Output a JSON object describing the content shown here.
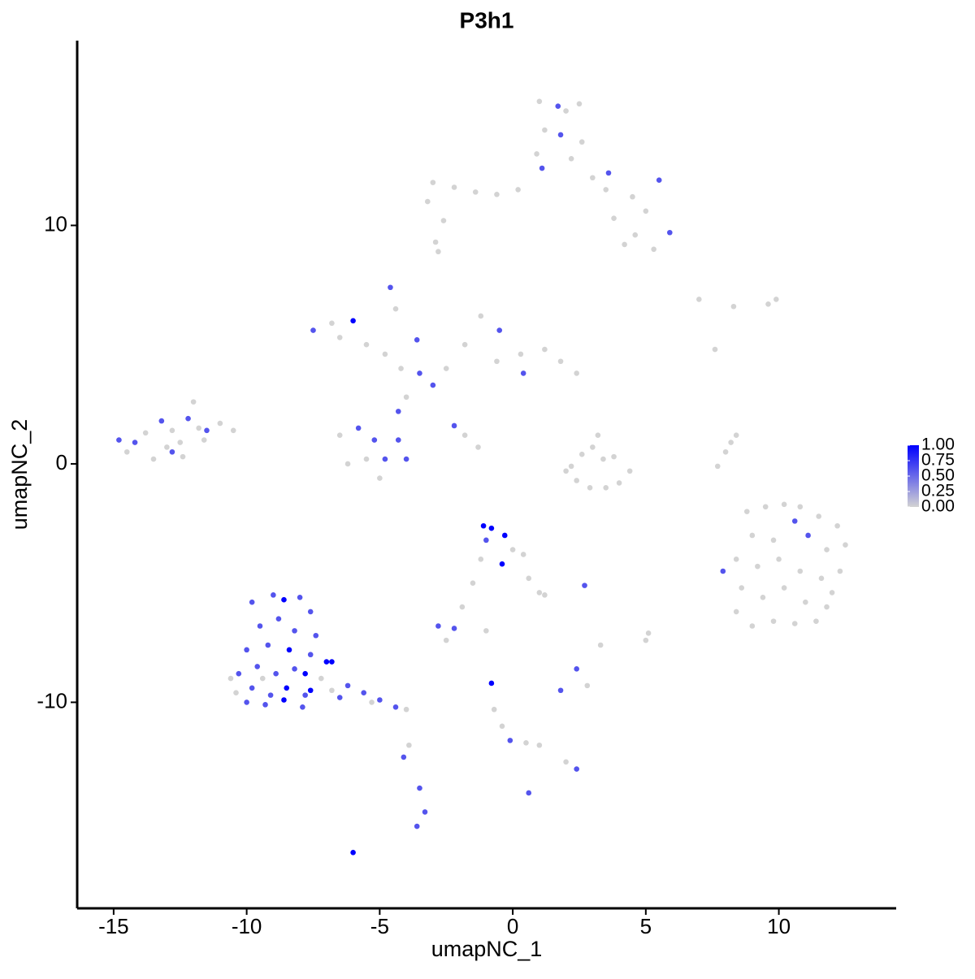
{
  "chart_data": {
    "type": "scatter",
    "title": "P3h1",
    "x_label": "umapNC_1",
    "y_label": "umapNC_2",
    "xlim": [
      -16.37,
      14.41
    ],
    "ylim": [
      -18.64,
      17.75
    ],
    "xticks": [
      -15,
      -10,
      -5,
      0,
      5,
      10
    ],
    "yticks": [
      -10,
      0,
      10
    ],
    "x": [
      1.0,
      1.7,
      2.0,
      2.5,
      1.2,
      1.8,
      2.6,
      0.9,
      1.1,
      2.2,
      3.0,
      3.5,
      3.6,
      4.5,
      5.0,
      5.5,
      3.8,
      4.6,
      5.3,
      4.2,
      -3.0,
      -2.2,
      -1.4,
      -0.6,
      0.2,
      -3.2,
      -2.6,
      -2.8,
      -2.9,
      5.9,
      -7.5,
      -6.8,
      -6.0,
      -6.5,
      -5.5,
      -4.8,
      -4.2,
      -3.5,
      -3.0,
      -3.6,
      -4.6,
      -4.4,
      -4.0,
      -4.3,
      -2.5,
      -1.8,
      -1.2,
      -0.5,
      0.3,
      0.4,
      1.2,
      1.8,
      2.4,
      -0.6,
      -6.5,
      -5.8,
      -5.2,
      -4.8,
      -5.5,
      -6.2,
      -5.0,
      -4.0,
      -4.3,
      -2.2,
      -1.8,
      -1.3,
      -14.8,
      -14.2,
      -14.5,
      -13.8,
      -13.2,
      -12.8,
      -12.5,
      -12.2,
      -11.8,
      -11.5,
      -11.0,
      -10.5,
      -12.0,
      -13.5,
      -12.8,
      -13.0,
      -11.6,
      -12.4,
      2.0,
      2.4,
      2.9,
      3.5,
      4.0,
      4.4,
      3.0,
      3.2,
      3.4,
      2.6,
      3.8,
      2.2,
      7.7,
      8.0,
      8.2,
      8.4,
      7.0,
      8.3,
      9.6,
      9.9,
      7.6,
      8.8,
      9.5,
      10.2,
      10.8,
      11.5,
      12.2,
      12.5,
      9.0,
      9.8,
      10.6,
      11.1,
      11.8,
      8.4,
      9.2,
      10.0,
      10.8,
      11.6,
      12.3,
      7.9,
      8.6,
      9.4,
      10.2,
      11.0,
      11.8,
      8.4,
      9.0,
      9.8,
      10.6,
      11.4,
      12.0,
      -9.8,
      -9.0,
      -8.6,
      -8.0,
      -7.6,
      -9.5,
      -8.8,
      -8.2,
      -7.4,
      -10.0,
      -9.2,
      -8.4,
      -7.6,
      -7.0,
      -10.3,
      -9.6,
      -8.9,
      -8.2,
      -7.8,
      -7.2,
      -10.4,
      -9.8,
      -9.1,
      -8.5,
      -7.8,
      -10.0,
      -9.3,
      -8.6,
      -7.9,
      -7.6,
      -6.8,
      -6.2,
      -5.6,
      -5.0,
      -4.4,
      -4.0,
      -5.3,
      -6.5,
      -10.6,
      -9.4,
      -1.1,
      -0.8,
      -0.3,
      -1.0,
      -0.4,
      0.0,
      0.4,
      0.6,
      1.0,
      1.2,
      -1.2,
      -1.5,
      -1.9,
      2.7,
      -2.8,
      -2.2,
      -2.5,
      -1.0,
      -0.8,
      -0.7,
      -0.4,
      -0.1,
      0.5,
      1.0,
      2.4,
      2.0,
      0.6,
      1.8,
      2.4,
      2.8,
      3.3,
      5.0,
      5.1,
      -3.5,
      -3.3,
      -3.6,
      -3.9,
      -4.1,
      -6.0,
      -6.8
    ],
    "y": [
      15.2,
      15.0,
      14.8,
      15.1,
      14.0,
      13.8,
      13.5,
      13.0,
      12.4,
      12.8,
      12.0,
      11.5,
      12.2,
      11.2,
      10.6,
      11.9,
      10.3,
      9.6,
      9.0,
      9.2,
      11.8,
      11.6,
      11.4,
      11.3,
      11.5,
      11.0,
      10.2,
      8.9,
      9.3,
      9.7,
      5.6,
      5.9,
      6.0,
      5.3,
      5.0,
      4.6,
      4.0,
      3.8,
      3.3,
      5.2,
      7.4,
      6.5,
      2.8,
      2.2,
      4.0,
      5.0,
      6.2,
      5.6,
      4.6,
      3.8,
      4.8,
      4.3,
      3.8,
      4.3,
      1.2,
      1.5,
      1.0,
      0.2,
      0.2,
      0.0,
      -0.6,
      0.2,
      1.0,
      1.6,
      1.2,
      0.7,
      1.0,
      0.9,
      0.5,
      1.3,
      1.8,
      1.4,
      0.9,
      1.9,
      1.5,
      1.4,
      1.7,
      1.4,
      2.6,
      0.2,
      0.5,
      0.7,
      1.0,
      0.3,
      -0.3,
      -0.7,
      -1.0,
      -1.0,
      -0.8,
      -0.3,
      0.7,
      1.2,
      0.2,
      0.4,
      0.3,
      -0.1,
      -0.1,
      0.5,
      0.9,
      1.2,
      6.9,
      6.6,
      6.7,
      6.9,
      4.8,
      -2.0,
      -1.8,
      -1.7,
      -1.8,
      -2.2,
      -2.6,
      -3.4,
      -3.0,
      -3.2,
      -2.4,
      -3.0,
      -3.6,
      -4.0,
      -4.3,
      -4.0,
      -4.5,
      -4.8,
      -4.5,
      -4.5,
      -5.2,
      -5.6,
      -5.2,
      -5.8,
      -6.0,
      -6.2,
      -6.8,
      -6.6,
      -6.7,
      -6.6,
      -5.4,
      -5.8,
      -5.5,
      -5.7,
      -5.6,
      -6.2,
      -6.8,
      -6.5,
      -7.0,
      -7.2,
      -7.8,
      -7.6,
      -7.8,
      -8.0,
      -8.3,
      -8.8,
      -8.5,
      -8.8,
      -8.6,
      -8.8,
      -9.0,
      -9.6,
      -9.4,
      -9.7,
      -9.4,
      -9.7,
      -10.0,
      -10.1,
      -9.9,
      -10.2,
      -9.5,
      -9.5,
      -9.3,
      -9.6,
      -9.9,
      -10.2,
      -10.3,
      -10.0,
      -9.8,
      -9.0,
      -9.0,
      -2.6,
      -2.7,
      -3.0,
      -3.2,
      -4.2,
      -3.6,
      -3.8,
      -4.8,
      -5.4,
      -5.5,
      -4.0,
      -5.0,
      -6.0,
      -5.1,
      -6.8,
      -6.9,
      -7.4,
      -7.0,
      -9.2,
      -10.3,
      -11.0,
      -11.6,
      -11.7,
      -11.8,
      -12.8,
      -12.5,
      -13.8,
      -9.5,
      -8.6,
      -9.3,
      -7.6,
      -7.4,
      -7.1,
      -13.6,
      -14.6,
      -15.2,
      -11.8,
      -12.3,
      -16.3,
      -8.3
    ],
    "values": [
      0,
      0.6,
      0,
      0,
      0,
      0.6,
      0,
      0,
      0.6,
      0,
      0,
      0,
      0.6,
      0,
      0,
      0.6,
      0,
      0,
      0,
      0,
      0,
      0,
      0,
      0,
      0,
      0,
      0,
      0,
      0,
      0.6,
      0.6,
      0,
      1.0,
      0,
      0,
      0,
      0,
      0.6,
      0.6,
      0.6,
      0.6,
      0,
      0,
      0.6,
      0,
      0,
      0,
      0.6,
      0,
      0.6,
      0,
      0,
      0,
      0,
      0,
      0.6,
      0.6,
      0.6,
      0,
      0,
      0,
      0.6,
      0.6,
      0.6,
      0,
      0,
      0.6,
      0.6,
      0,
      0,
      0.6,
      0,
      0,
      0.6,
      0,
      0.6,
      0,
      0,
      0,
      0,
      0.6,
      0,
      0,
      0,
      0,
      0,
      0,
      0,
      0,
      0,
      0,
      0,
      0,
      0,
      0,
      0,
      0,
      0,
      0,
      0,
      0,
      0,
      0,
      0,
      0,
      0,
      0,
      0,
      0,
      0,
      0,
      0,
      0,
      0,
      0.6,
      0.6,
      0,
      0,
      0,
      0,
      0,
      0,
      0,
      0.6,
      0,
      0,
      0,
      0,
      0,
      0,
      0,
      0,
      0,
      0,
      0,
      0.6,
      0.6,
      1.0,
      0.6,
      0.6,
      0.6,
      0.6,
      0.6,
      0.6,
      0.6,
      0.6,
      1.0,
      0.6,
      1.0,
      0.6,
      0.6,
      0.6,
      0.6,
      1.0,
      0,
      0,
      0.6,
      0.6,
      1.0,
      0.6,
      0.6,
      0.6,
      1.0,
      0.6,
      1.0,
      0,
      0.6,
      0.6,
      0.6,
      0.6,
      0,
      0,
      0.6,
      0,
      0,
      1.0,
      1.0,
      1.0,
      0.6,
      1.0,
      0,
      0,
      0,
      0,
      0,
      0,
      0,
      0,
      0.6,
      0.6,
      0.6,
      0,
      0,
      1.0,
      0,
      0,
      0.6,
      0,
      0,
      0.6,
      0,
      0.6,
      0.6,
      0.6,
      0,
      0,
      0,
      0,
      0.6,
      0.6,
      0.6,
      0,
      0.6,
      1.0,
      1.0
    ],
    "colorbar": {
      "low": "#d3d3d3",
      "high": "#0000ff",
      "clim": [
        0,
        1
      ],
      "ticks": [
        {
          "value": 0,
          "label": "0.00"
        },
        {
          "value": 0.25,
          "label": "0.25"
        },
        {
          "value": 0.5,
          "label": "0.50"
        },
        {
          "value": 0.75,
          "label": "0.75"
        },
        {
          "value": 1,
          "label": "1.00"
        }
      ]
    }
  }
}
